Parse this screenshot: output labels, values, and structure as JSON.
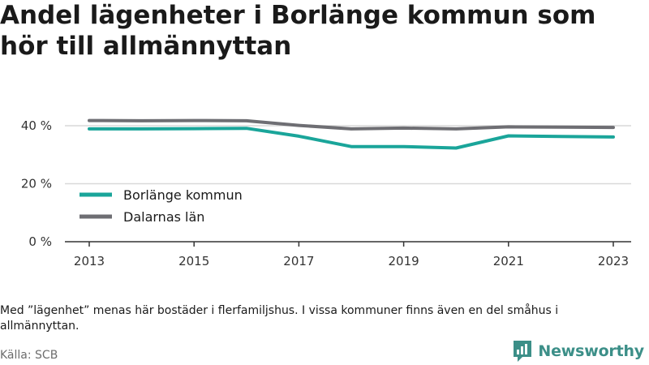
{
  "chart_data": {
    "type": "line",
    "title": "Andel lägenheter i Borlänge kommun som hör till allmännyttan",
    "x": [
      2013,
      2014,
      2015,
      2016,
      2017,
      2018,
      2019,
      2020,
      2021,
      2022,
      2023
    ],
    "x_ticks": [
      "2013",
      "2015",
      "2017",
      "2019",
      "2021",
      "2023"
    ],
    "y_ticks": [
      "0 %",
      "20 %",
      "40 %"
    ],
    "ylim": [
      0,
      40
    ],
    "series": [
      {
        "name": "Borlänge kommun",
        "color": "#1aa59a",
        "values": [
          38.9,
          38.9,
          39.0,
          39.1,
          36.4,
          32.8,
          32.8,
          32.3,
          36.5,
          36.3,
          36.1
        ]
      },
      {
        "name": "Dalarnas län",
        "color": "#6e6e73",
        "values": [
          41.8,
          41.7,
          41.8,
          41.7,
          40.1,
          38.9,
          39.2,
          38.9,
          39.6,
          39.5,
          39.4
        ]
      }
    ],
    "grid": true,
    "legend_position": "bottom-left"
  },
  "note": "Med ”lägenhet” menas här bostäder i flerfamiljshus. I vissa kommuner finns även en del småhus i allmännyttan.",
  "source": "Källa: SCB",
  "brand": {
    "name": "Newsworthy",
    "icon": "newsworthy-logo-icon",
    "color": "#3c8f88"
  }
}
